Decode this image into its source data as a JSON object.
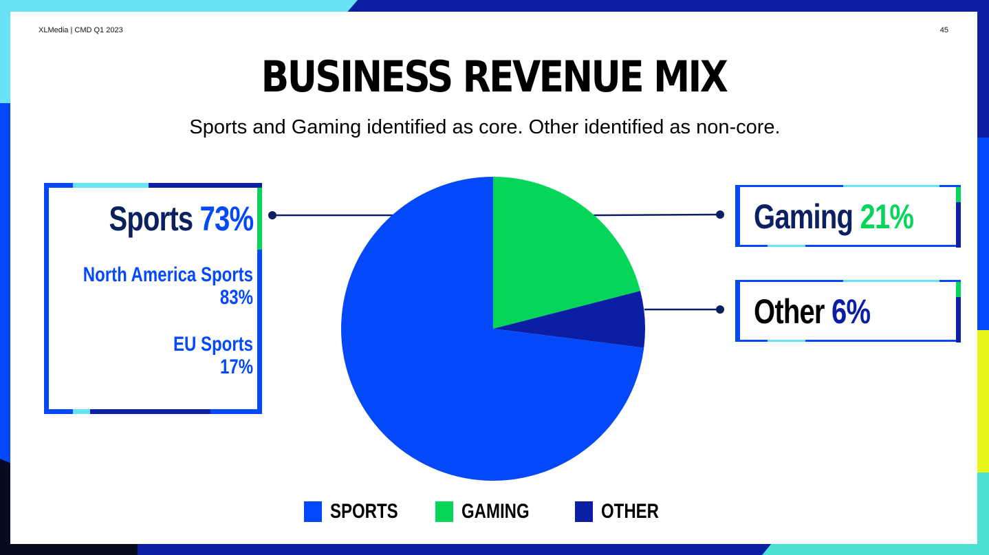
{
  "header": {
    "left": "XLMedia | CMD Q1 2023",
    "page_number": "45"
  },
  "title": "BUSINESS REVENUE MIX",
  "subtitle": "Sports and Gaming identified as core. Other identified as non-core.",
  "callouts": {
    "sports": {
      "label": "Sports",
      "value": "73%",
      "breakdown": [
        {
          "name": "North America Sports",
          "value": "83%"
        },
        {
          "name": "EU Sports",
          "value": "17%"
        }
      ]
    },
    "gaming": {
      "label": "Gaming",
      "value": "21%"
    },
    "other": {
      "label": "Other",
      "value": "6%"
    }
  },
  "chart_data": {
    "type": "pie",
    "title": "BUSINESS REVENUE MIX",
    "categories": [
      "SPORTS",
      "GAMING",
      "OTHER"
    ],
    "values": [
      73,
      21,
      6
    ],
    "colors": [
      "#0449f9",
      "#05d65a",
      "#0a1fa3"
    ],
    "legend_position": "bottom"
  },
  "legend": {
    "items": [
      {
        "label": "SPORTS",
        "color": "#0449f9"
      },
      {
        "label": "GAMING",
        "color": "#05d65a"
      },
      {
        "label": "OTHER",
        "color": "#0a1fa3"
      }
    ]
  },
  "colors": {
    "sports": "#0449f9",
    "gaming": "#05d65a",
    "other": "#0a1fa3",
    "dark_text": "#0b2061"
  }
}
